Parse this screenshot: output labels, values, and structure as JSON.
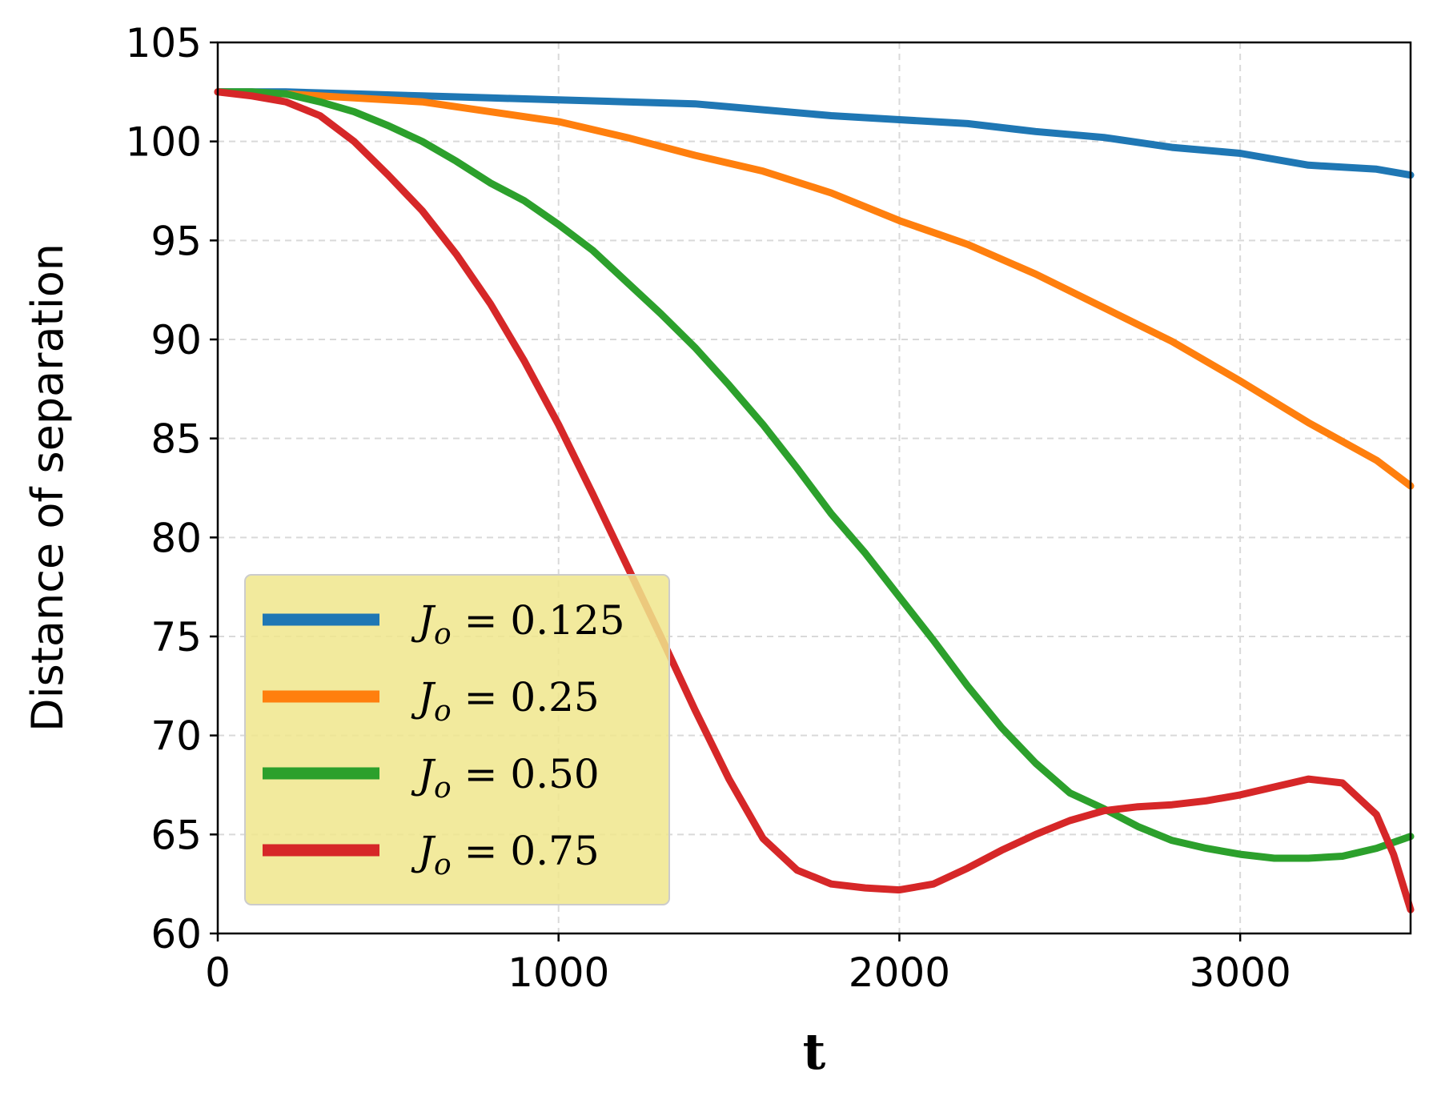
{
  "chart_data": {
    "type": "line",
    "title": "",
    "xlabel": "t",
    "ylabel": "Distance of separation",
    "xlim": [
      0,
      3500
    ],
    "ylim": [
      60,
      105
    ],
    "xticks": [
      0,
      1000,
      2000,
      3000
    ],
    "yticks": [
      60,
      65,
      70,
      75,
      80,
      85,
      90,
      95,
      100,
      105
    ],
    "grid": true,
    "legend_position": "lower-left",
    "series": [
      {
        "name": "J_o = 0.125",
        "label_main": "J",
        "label_sub": "o",
        "label_value": "= 0.125",
        "color": "#1f77b4",
        "x": [
          0,
          200,
          400,
          600,
          800,
          1000,
          1200,
          1400,
          1600,
          1800,
          2000,
          2200,
          2400,
          2600,
          2800,
          3000,
          3200,
          3400,
          3500
        ],
        "y": [
          102.5,
          102.5,
          102.4,
          102.3,
          102.2,
          102.1,
          102.0,
          101.9,
          101.6,
          101.3,
          101.1,
          100.9,
          100.5,
          100.2,
          99.7,
          99.4,
          98.8,
          98.6,
          98.3
        ]
      },
      {
        "name": "J_o = 0.25",
        "label_main": "J",
        "label_sub": "o",
        "label_value": "= 0.25",
        "color": "#ff7f0e",
        "x": [
          0,
          200,
          400,
          600,
          800,
          1000,
          1200,
          1400,
          1600,
          1800,
          2000,
          2200,
          2400,
          2600,
          2800,
          3000,
          3200,
          3400,
          3500
        ],
        "y": [
          102.5,
          102.4,
          102.2,
          102.0,
          101.5,
          101.0,
          100.2,
          99.3,
          98.5,
          97.4,
          96.0,
          94.8,
          93.3,
          91.6,
          89.9,
          87.9,
          85.8,
          83.9,
          82.6
        ]
      },
      {
        "name": "J_o = 0.50",
        "label_main": "J",
        "label_sub": "o",
        "label_value": "= 0.50",
        "color": "#2ca02c",
        "x": [
          0,
          100,
          200,
          300,
          400,
          500,
          600,
          700,
          800,
          900,
          1000,
          1100,
          1200,
          1300,
          1400,
          1500,
          1600,
          1700,
          1800,
          1900,
          2000,
          2100,
          2200,
          2300,
          2400,
          2500,
          2600,
          2700,
          2800,
          2900,
          3000,
          3100,
          3200,
          3300,
          3400,
          3500
        ],
        "y": [
          102.5,
          102.5,
          102.4,
          102.0,
          101.5,
          100.8,
          100.0,
          99.0,
          97.9,
          97.0,
          95.8,
          94.5,
          92.9,
          91.3,
          89.6,
          87.7,
          85.7,
          83.5,
          81.2,
          79.2,
          77.0,
          74.8,
          72.5,
          70.4,
          68.6,
          67.1,
          66.3,
          65.4,
          64.7,
          64.3,
          64.0,
          63.8,
          63.8,
          63.9,
          64.3,
          64.9
        ]
      },
      {
        "name": "J_o = 0.75",
        "label_main": "J",
        "label_sub": "o",
        "label_value": "= 0.75",
        "color": "#d62728",
        "x": [
          0,
          100,
          200,
          300,
          400,
          500,
          600,
          700,
          800,
          900,
          1000,
          1100,
          1200,
          1300,
          1400,
          1500,
          1600,
          1700,
          1800,
          1900,
          2000,
          2100,
          2200,
          2300,
          2400,
          2500,
          2600,
          2700,
          2800,
          2900,
          3000,
          3100,
          3200,
          3300,
          3400,
          3450,
          3500
        ],
        "y": [
          102.5,
          102.3,
          102.0,
          101.3,
          100.0,
          98.3,
          96.5,
          94.3,
          91.8,
          88.9,
          85.7,
          82.2,
          78.6,
          75.0,
          71.3,
          67.8,
          64.8,
          63.2,
          62.5,
          62.3,
          62.2,
          62.5,
          63.3,
          64.2,
          65.0,
          65.7,
          66.2,
          66.4,
          66.5,
          66.7,
          67.0,
          67.4,
          67.8,
          67.6,
          66.0,
          64.0,
          61.2
        ]
      }
    ]
  }
}
